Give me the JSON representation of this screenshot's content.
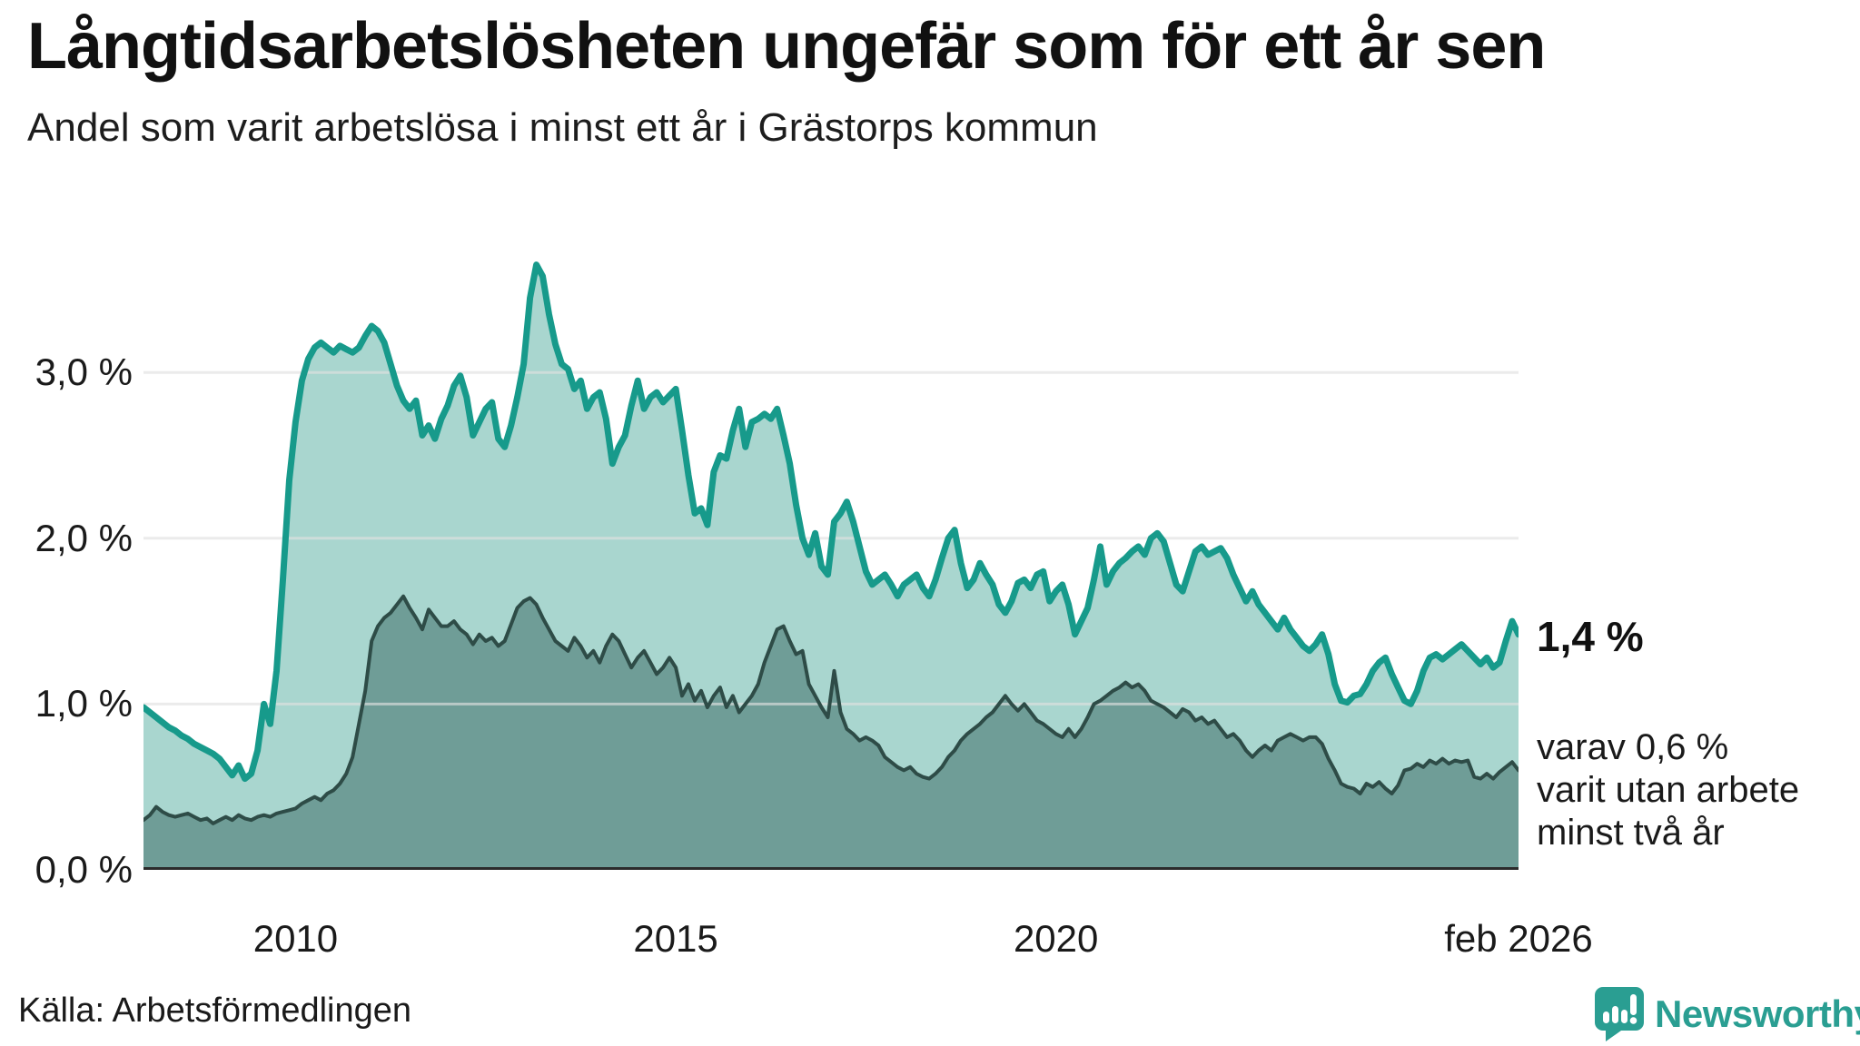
{
  "header": {
    "title": "Långtidsarbetslösheten ungefär som för ett år sen",
    "subtitle": "Andel som varit arbetslösa i minst ett år i Grästorps kommun"
  },
  "chart_data": {
    "type": "area",
    "unit": "%",
    "x_start": "2008-01",
    "x_end": "2026-02",
    "x_frequency": "monthly",
    "ylim": [
      0,
      3.877
    ],
    "grid": "horizontal",
    "y_gridline_values": [
      1,
      2,
      3
    ],
    "y_ticks": [
      {
        "label": "0,0 %",
        "value": 0
      },
      {
        "label": "1,0 %",
        "value": 1
      },
      {
        "label": "2,0 %",
        "value": 2
      },
      {
        "label": "3,0 %",
        "value": 3
      }
    ],
    "x_ticks": [
      {
        "label": "2010",
        "month_index": 24
      },
      {
        "label": "2015",
        "month_index": 84
      },
      {
        "label": "2020",
        "month_index": 144
      },
      {
        "label": "feb 2026",
        "month_index": 217
      }
    ],
    "series": [
      {
        "name": "Andel arbetslösa minst ett år",
        "color": "#179a8b",
        "fill": "#a9d6cf",
        "stroke_width": 7,
        "values": [
          0.98,
          0.95,
          0.92,
          0.89,
          0.86,
          0.84,
          0.81,
          0.79,
          0.76,
          0.74,
          0.72,
          0.7,
          0.67,
          0.62,
          0.57,
          0.63,
          0.55,
          0.58,
          0.72,
          1.0,
          0.88,
          1.2,
          1.75,
          2.35,
          2.7,
          2.95,
          3.08,
          3.15,
          3.18,
          3.15,
          3.12,
          3.16,
          3.14,
          3.12,
          3.15,
          3.22,
          3.28,
          3.25,
          3.18,
          3.05,
          2.92,
          2.83,
          2.78,
          2.83,
          2.62,
          2.68,
          2.6,
          2.72,
          2.8,
          2.92,
          2.98,
          2.85,
          2.62,
          2.7,
          2.78,
          2.82,
          2.6,
          2.55,
          2.68,
          2.85,
          3.05,
          3.45,
          3.65,
          3.58,
          3.35,
          3.17,
          3.05,
          3.02,
          2.9,
          2.95,
          2.78,
          2.85,
          2.88,
          2.72,
          2.45,
          2.55,
          2.62,
          2.8,
          2.95,
          2.78,
          2.85,
          2.88,
          2.82,
          2.86,
          2.9,
          2.65,
          2.38,
          2.15,
          2.18,
          2.08,
          2.4,
          2.5,
          2.48,
          2.65,
          2.78,
          2.55,
          2.7,
          2.72,
          2.75,
          2.72,
          2.78,
          2.62,
          2.45,
          2.2,
          2.0,
          1.9,
          2.03,
          1.83,
          1.78,
          2.1,
          2.15,
          2.22,
          2.1,
          1.95,
          1.8,
          1.72,
          1.75,
          1.78,
          1.72,
          1.65,
          1.72,
          1.75,
          1.78,
          1.7,
          1.65,
          1.75,
          1.88,
          2.0,
          2.05,
          1.85,
          1.7,
          1.75,
          1.85,
          1.78,
          1.72,
          1.6,
          1.55,
          1.62,
          1.73,
          1.75,
          1.7,
          1.78,
          1.8,
          1.62,
          1.68,
          1.72,
          1.6,
          1.42,
          1.5,
          1.58,
          1.75,
          1.95,
          1.72,
          1.8,
          1.85,
          1.88,
          1.92,
          1.95,
          1.9,
          2.0,
          2.03,
          1.98,
          1.85,
          1.72,
          1.68,
          1.8,
          1.92,
          1.95,
          1.9,
          1.92,
          1.94,
          1.88,
          1.78,
          1.7,
          1.62,
          1.68,
          1.6,
          1.55,
          1.5,
          1.45,
          1.52,
          1.45,
          1.4,
          1.35,
          1.32,
          1.36,
          1.42,
          1.3,
          1.12,
          1.02,
          1.01,
          1.05,
          1.06,
          1.12,
          1.2,
          1.25,
          1.28,
          1.18,
          1.1,
          1.02,
          1.0,
          1.08,
          1.2,
          1.28,
          1.3,
          1.27,
          1.3,
          1.33,
          1.36,
          1.32,
          1.28,
          1.24,
          1.28,
          1.22,
          1.25,
          1.38,
          1.5,
          1.42
        ]
      },
      {
        "name": "Andel arbetslösa minst två år",
        "color": "#2e4c47",
        "fill": "#6f9d97",
        "stroke_width": 4,
        "values": [
          0.3,
          0.33,
          0.38,
          0.35,
          0.33,
          0.32,
          0.33,
          0.34,
          0.32,
          0.3,
          0.31,
          0.28,
          0.3,
          0.32,
          0.3,
          0.33,
          0.31,
          0.3,
          0.32,
          0.33,
          0.32,
          0.34,
          0.35,
          0.36,
          0.37,
          0.4,
          0.42,
          0.44,
          0.42,
          0.46,
          0.48,
          0.52,
          0.58,
          0.68,
          0.88,
          1.08,
          1.38,
          1.47,
          1.52,
          1.55,
          1.6,
          1.65,
          1.58,
          1.52,
          1.45,
          1.57,
          1.52,
          1.47,
          1.47,
          1.5,
          1.45,
          1.42,
          1.36,
          1.42,
          1.38,
          1.4,
          1.35,
          1.38,
          1.48,
          1.58,
          1.62,
          1.64,
          1.6,
          1.52,
          1.45,
          1.38,
          1.35,
          1.32,
          1.4,
          1.35,
          1.28,
          1.32,
          1.25,
          1.35,
          1.42,
          1.38,
          1.3,
          1.22,
          1.28,
          1.32,
          1.25,
          1.18,
          1.22,
          1.28,
          1.22,
          1.05,
          1.12,
          1.02,
          1.08,
          0.98,
          1.05,
          1.1,
          0.98,
          1.05,
          0.95,
          1.0,
          1.05,
          1.12,
          1.25,
          1.35,
          1.45,
          1.47,
          1.38,
          1.3,
          1.32,
          1.12,
          1.05,
          0.98,
          0.92,
          1.2,
          0.95,
          0.85,
          0.82,
          0.78,
          0.8,
          0.78,
          0.75,
          0.68,
          0.65,
          0.62,
          0.6,
          0.62,
          0.58,
          0.56,
          0.55,
          0.58,
          0.62,
          0.68,
          0.72,
          0.78,
          0.82,
          0.85,
          0.88,
          0.92,
          0.95,
          1.0,
          1.05,
          1.0,
          0.96,
          1.0,
          0.95,
          0.9,
          0.88,
          0.85,
          0.82,
          0.8,
          0.85,
          0.8,
          0.85,
          0.92,
          1.0,
          1.02,
          1.05,
          1.08,
          1.1,
          1.13,
          1.1,
          1.12,
          1.08,
          1.02,
          1.0,
          0.98,
          0.95,
          0.92,
          0.97,
          0.95,
          0.9,
          0.92,
          0.88,
          0.9,
          0.85,
          0.8,
          0.82,
          0.78,
          0.72,
          0.68,
          0.72,
          0.75,
          0.72,
          0.78,
          0.8,
          0.82,
          0.8,
          0.78,
          0.8,
          0.8,
          0.76,
          0.67,
          0.6,
          0.52,
          0.5,
          0.49,
          0.46,
          0.52,
          0.5,
          0.53,
          0.49,
          0.46,
          0.51,
          0.6,
          0.61,
          0.64,
          0.62,
          0.66,
          0.64,
          0.67,
          0.64,
          0.66,
          0.65,
          0.66,
          0.56,
          0.55,
          0.58,
          0.55,
          0.59,
          0.62,
          0.65,
          0.6
        ]
      }
    ],
    "annotations": {
      "latest_primary": "1,4 %",
      "secondary_note_line1": "varav 0,6 %",
      "secondary_note_line2": "varit utan arbete",
      "secondary_note_line3": "minst två år"
    },
    "colors": {
      "gridline": "#e0e0e0",
      "baseline": "#2b2b2b"
    }
  },
  "footer": {
    "source": "Källa: Arbetsförmedlingen",
    "brand": "Newsworthy",
    "brand_color": "#2a9e92"
  }
}
